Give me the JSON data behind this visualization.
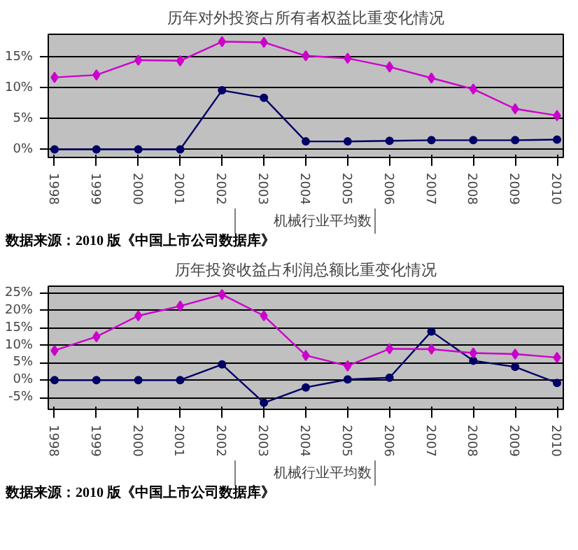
{
  "chart_data": [
    {
      "type": "line",
      "title": "历年对外投资占所有者权益比重变化情况",
      "categories": [
        "1998",
        "1999",
        "2000",
        "2001",
        "2002",
        "2003",
        "2004",
        "2005",
        "2006",
        "2007",
        "2008",
        "2009",
        "2010"
      ],
      "series": [
        {
          "color": "#000066",
          "marker": "circle",
          "values": [
            0,
            0,
            0,
            0,
            9.6,
            8.4,
            1.3,
            1.3,
            1.4,
            1.5,
            1.5,
            1.5,
            1.6
          ]
        },
        {
          "name": "机械行业平均数",
          "color": "#cc00cc",
          "marker": "diamond",
          "values": [
            11.7,
            12.1,
            14.5,
            14.4,
            17.5,
            17.4,
            15.2,
            14.8,
            13.4,
            11.6,
            9.8,
            6.6,
            5.5
          ]
        }
      ],
      "ylim": [
        -1.3,
        18.7
      ],
      "yticks": [
        {
          "value": 0,
          "label": "0%"
        },
        {
          "value": 5,
          "label": "5%"
        },
        {
          "value": 10,
          "label": "10%"
        },
        {
          "value": 15,
          "label": "15%"
        }
      ],
      "grid": "y",
      "legend": "bottom",
      "annotations": [
        "数据来源：2010 版《中国上市公司数据库》"
      ]
    },
    {
      "type": "line",
      "title": "历年投资收益占利润总额比重变化情况",
      "categories": [
        "1998",
        "1999",
        "2000",
        "2001",
        "2002",
        "2003",
        "2004",
        "2005",
        "2006",
        "2007",
        "2008",
        "2009",
        "2010"
      ],
      "series": [
        {
          "color": "#000066",
          "marker": "circle",
          "values": [
            0,
            0,
            0,
            0,
            4.5,
            -6.5,
            -2.1,
            0.2,
            0.7,
            14.0,
            5.6,
            3.8,
            -0.8
          ]
        },
        {
          "name": "机械行业平均数",
          "color": "#cc00cc",
          "marker": "diamond",
          "values": [
            8.5,
            12.5,
            18.5,
            21.3,
            24.6,
            18.5,
            7.1,
            4.1,
            9.0,
            8.9,
            7.8,
            7.5,
            6.5
          ]
        }
      ],
      "ylim": [
        -8.4,
        27
      ],
      "yticks": [
        {
          "value": -5,
          "label": "-5%"
        },
        {
          "value": 0,
          "label": "0%"
        },
        {
          "value": 5,
          "label": "5%"
        },
        {
          "value": 10,
          "label": "10%"
        },
        {
          "value": 15,
          "label": "15%"
        },
        {
          "value": 20,
          "label": "20%"
        },
        {
          "value": 25,
          "label": "25%"
        }
      ],
      "grid": "y",
      "legend": "bottom",
      "annotations": [
        "数据来源：2010 版《中国上市公司数据库》"
      ]
    }
  ]
}
